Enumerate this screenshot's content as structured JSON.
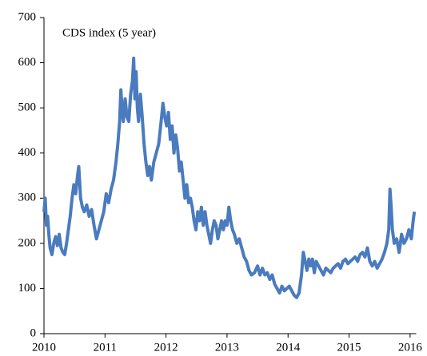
{
  "chart_data": {
    "type": "line",
    "title": "CDS index (5 year)",
    "color": "#4a7bbf",
    "xlim": [
      2010,
      2016.1
    ],
    "xticks": [
      2010,
      2011,
      2012,
      2013,
      2014,
      2015,
      2016
    ],
    "ylim": [
      0,
      700
    ],
    "yticks": [
      0,
      100,
      200,
      300,
      400,
      500,
      600,
      700
    ],
    "x": [
      2010.0,
      2010.02,
      2010.04,
      2010.06,
      2010.08,
      2010.1,
      2010.13,
      2010.16,
      2010.19,
      2010.22,
      2010.25,
      2010.28,
      2010.31,
      2010.34,
      2010.37,
      2010.4,
      2010.43,
      2010.46,
      2010.49,
      2010.52,
      2010.55,
      2010.57,
      2010.6,
      2010.63,
      2010.66,
      2010.7,
      2010.74,
      2010.78,
      2010.82,
      2010.86,
      2010.9,
      2010.94,
      2010.98,
      2011.02,
      2011.06,
      2011.1,
      2011.14,
      2011.18,
      2011.21,
      2011.24,
      2011.26,
      2011.28,
      2011.3,
      2011.33,
      2011.36,
      2011.39,
      2011.42,
      2011.45,
      2011.47,
      2011.49,
      2011.51,
      2011.53,
      2011.55,
      2011.58,
      2011.61,
      2011.64,
      2011.67,
      2011.7,
      2011.73,
      2011.76,
      2011.8,
      2011.84,
      2011.88,
      2011.92,
      2011.95,
      2011.98,
      2012.01,
      2012.04,
      2012.07,
      2012.1,
      2012.13,
      2012.16,
      2012.19,
      2012.22,
      2012.25,
      2012.28,
      2012.31,
      2012.34,
      2012.37,
      2012.4,
      2012.43,
      2012.46,
      2012.49,
      2012.52,
      2012.55,
      2012.58,
      2012.61,
      2012.64,
      2012.67,
      2012.7,
      2012.73,
      2012.76,
      2012.79,
      2012.82,
      2012.85,
      2012.88,
      2012.91,
      2012.94,
      2012.97,
      2013.0,
      2013.03,
      2013.06,
      2013.09,
      2013.12,
      2013.16,
      2013.2,
      2013.24,
      2013.28,
      2013.32,
      2013.36,
      2013.4,
      2013.45,
      2013.5,
      2013.54,
      2013.58,
      2013.62,
      2013.66,
      2013.7,
      2013.74,
      2013.78,
      2013.82,
      2013.86,
      2013.9,
      2013.94,
      2013.98,
      2014.02,
      2014.06,
      2014.1,
      2014.14,
      2014.18,
      2014.22,
      2014.25,
      2014.28,
      2014.31,
      2014.34,
      2014.37,
      2014.4,
      2014.43,
      2014.46,
      2014.5,
      2014.54,
      2014.58,
      2014.62,
      2014.66,
      2014.7,
      2014.74,
      2014.78,
      2014.82,
      2014.86,
      2014.9,
      2014.94,
      2014.98,
      2015.02,
      2015.06,
      2015.1,
      2015.14,
      2015.18,
      2015.22,
      2015.26,
      2015.3,
      2015.34,
      2015.38,
      2015.42,
      2015.46,
      2015.5,
      2015.54,
      2015.58,
      2015.62,
      2015.65,
      2015.67,
      2015.69,
      2015.71,
      2015.74,
      2015.78,
      2015.82,
      2015.86,
      2015.9,
      2015.94,
      2015.98,
      2016.02,
      2016.05,
      2016.07
    ],
    "values": [
      270,
      300,
      240,
      260,
      220,
      190,
      175,
      200,
      215,
      195,
      220,
      190,
      180,
      175,
      200,
      230,
      260,
      300,
      330,
      310,
      350,
      370,
      300,
      280,
      270,
      285,
      260,
      275,
      240,
      210,
      230,
      250,
      270,
      310,
      290,
      320,
      340,
      380,
      420,
      470,
      540,
      500,
      470,
      520,
      480,
      470,
      530,
      560,
      610,
      520,
      580,
      500,
      470,
      530,
      480,
      420,
      380,
      350,
      370,
      340,
      380,
      400,
      420,
      470,
      510,
      480,
      460,
      490,
      430,
      460,
      400,
      440,
      410,
      360,
      380,
      340,
      300,
      330,
      290,
      300,
      280,
      250,
      230,
      270,
      250,
      280,
      240,
      270,
      240,
      220,
      200,
      230,
      250,
      240,
      210,
      230,
      250,
      230,
      250,
      240,
      280,
      250,
      230,
      220,
      200,
      210,
      190,
      170,
      160,
      140,
      130,
      135,
      150,
      130,
      145,
      130,
      135,
      120,
      130,
      110,
      100,
      90,
      105,
      95,
      100,
      105,
      95,
      85,
      80,
      90,
      130,
      180,
      160,
      140,
      165,
      150,
      165,
      135,
      160,
      150,
      140,
      130,
      145,
      140,
      135,
      145,
      150,
      155,
      145,
      160,
      165,
      155,
      160,
      165,
      170,
      160,
      175,
      180,
      170,
      190,
      160,
      150,
      160,
      145,
      155,
      165,
      180,
      200,
      230,
      320,
      280,
      230,
      200,
      210,
      180,
      220,
      200,
      210,
      230,
      210,
      250,
      270
    ]
  }
}
